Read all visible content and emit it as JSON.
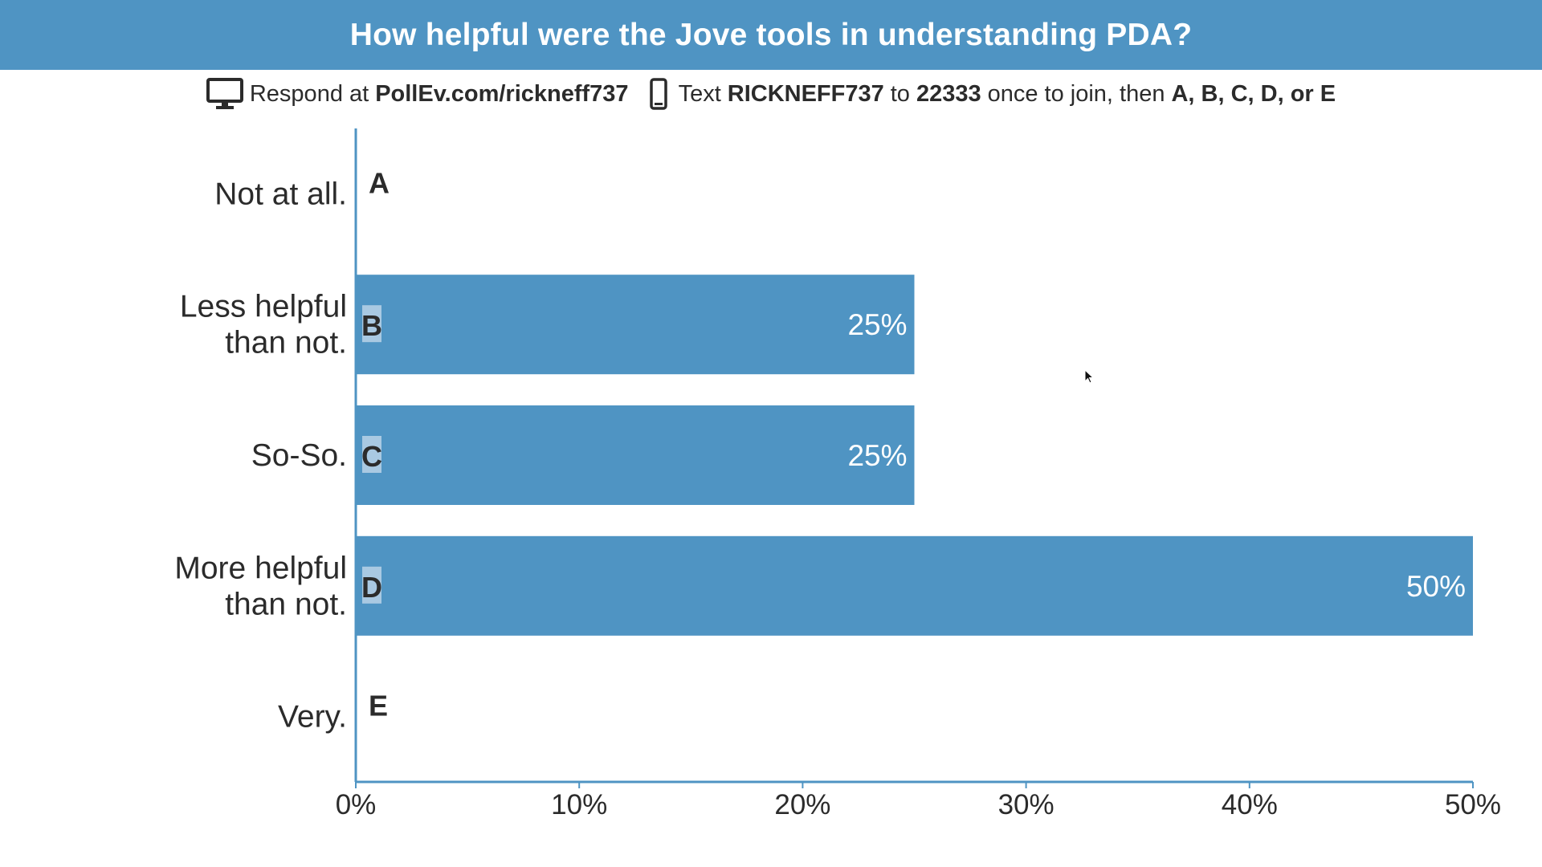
{
  "colors": {
    "accent": "#4f94c3",
    "letter_badge": "#a9c9e2",
    "axis": "#4f94c3",
    "text": "#2b2b2b",
    "bar_text": "#ffffff"
  },
  "header": {
    "title": "How helpful were the Jove tools in understanding PDA?"
  },
  "instructions": {
    "desktop_icon": "desktop-monitor-icon",
    "respond_prefix": "Respond at",
    "respond_url": "PollEv.com/rickneff737",
    "phone_icon": "mobile-phone-icon",
    "text_prefix": "Text",
    "text_code": "RICKNEFF737",
    "text_to": "to",
    "text_number": "22333",
    "text_suffix": "once to join, then",
    "text_options": "A, B, C, D, or E"
  },
  "chart_data": {
    "type": "bar",
    "orientation": "horizontal",
    "title": "How helpful were the Jove tools in understanding PDA?",
    "categories": [
      [
        "Not at all."
      ],
      [
        "Less helpful",
        "than not."
      ],
      [
        "So-So."
      ],
      [
        "More helpful",
        "than not."
      ],
      [
        "Very."
      ]
    ],
    "letters": [
      "A",
      "B",
      "C",
      "D",
      "E"
    ],
    "values": [
      0,
      25,
      25,
      50,
      0
    ],
    "value_labels": [
      "",
      "25%",
      "25%",
      "50%",
      ""
    ],
    "xlim": [
      0,
      50
    ],
    "x_ticks": [
      0,
      10,
      20,
      30,
      40,
      50
    ],
    "x_tick_labels": [
      "0%",
      "10%",
      "20%",
      "30%",
      "40%",
      "50%"
    ],
    "xlabel": "",
    "ylabel": "",
    "grid": false,
    "legend": "none"
  }
}
